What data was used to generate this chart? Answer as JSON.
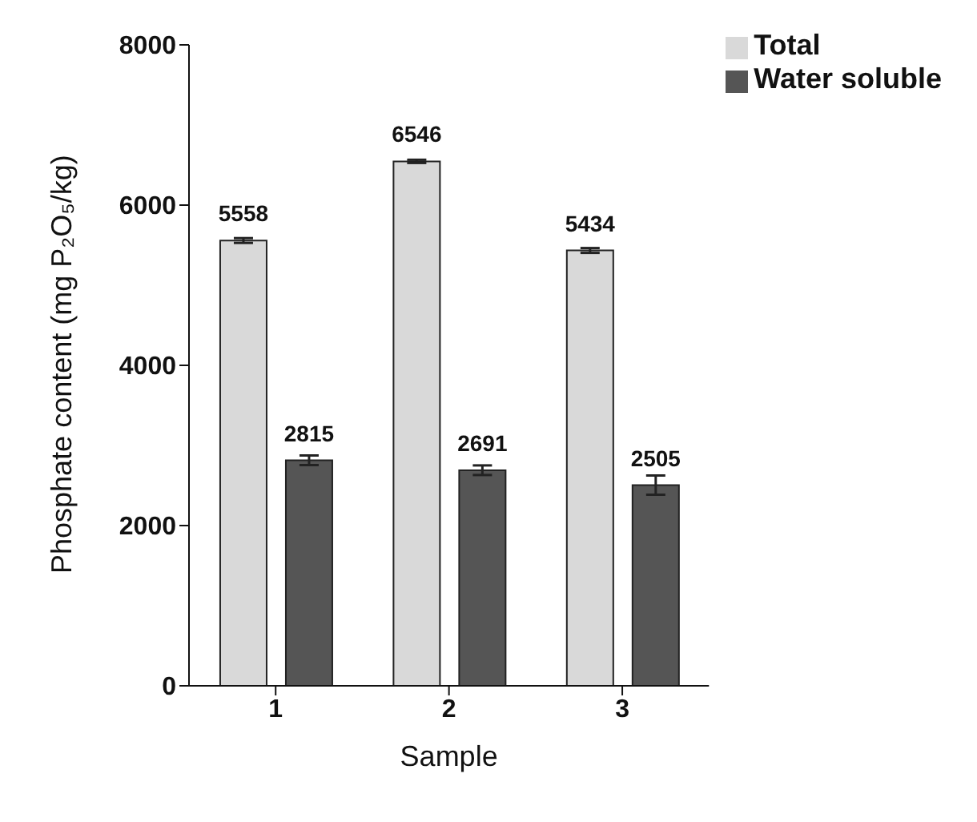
{
  "chart_data": {
    "type": "bar",
    "xlabel": "Sample",
    "ylabel": "Phosphate content (mg P₂O₅/kg)",
    "categories": [
      "1",
      "2",
      "3"
    ],
    "series": [
      {
        "name": "Total",
        "color": "#d9d9d9",
        "values": [
          5558,
          6546,
          5434
        ],
        "errors": [
          30,
          20,
          30
        ]
      },
      {
        "name": "Water soluble",
        "color": "#555555",
        "values": [
          2815,
          2691,
          2505
        ],
        "errors": [
          60,
          60,
          120
        ]
      }
    ],
    "ylim": [
      0,
      8000
    ],
    "yticks": [
      0,
      2000,
      4000,
      6000,
      8000
    ],
    "grid": false,
    "legend": "top right",
    "data_labels": true
  }
}
